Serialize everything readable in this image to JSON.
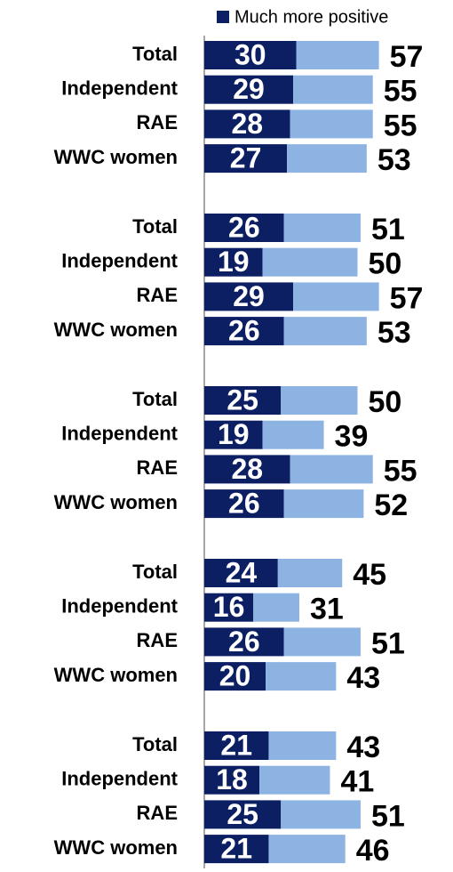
{
  "chart_data": {
    "type": "bar",
    "orientation": "horizontal",
    "stacked": true,
    "categories": [
      "Total",
      "Independent",
      "RAE",
      "WWC women",
      "Total",
      "Independent",
      "RAE",
      "WWC women",
      "Total",
      "Independent",
      "RAE",
      "WWC women",
      "Total",
      "Independent",
      "RAE",
      "WWC women",
      "Total",
      "Independent",
      "RAE",
      "WWC women"
    ],
    "series": [
      {
        "name": "Much more positive",
        "color": "#0c1f63",
        "values": [
          30,
          29,
          28,
          27,
          26,
          19,
          29,
          26,
          25,
          19,
          28,
          26,
          24,
          16,
          26,
          20,
          21,
          18,
          25,
          21
        ]
      },
      {
        "color": "#8db3e2",
        "values": [
          27,
          26,
          27,
          26,
          25,
          31,
          28,
          27,
          25,
          20,
          27,
          26,
          21,
          15,
          25,
          23,
          22,
          23,
          26,
          25
        ]
      }
    ],
    "totals": [
      57,
      55,
      55,
      53,
      51,
      50,
      57,
      53,
      50,
      39,
      55,
      52,
      45,
      31,
      51,
      43,
      43,
      41,
      51,
      46
    ]
  }
}
